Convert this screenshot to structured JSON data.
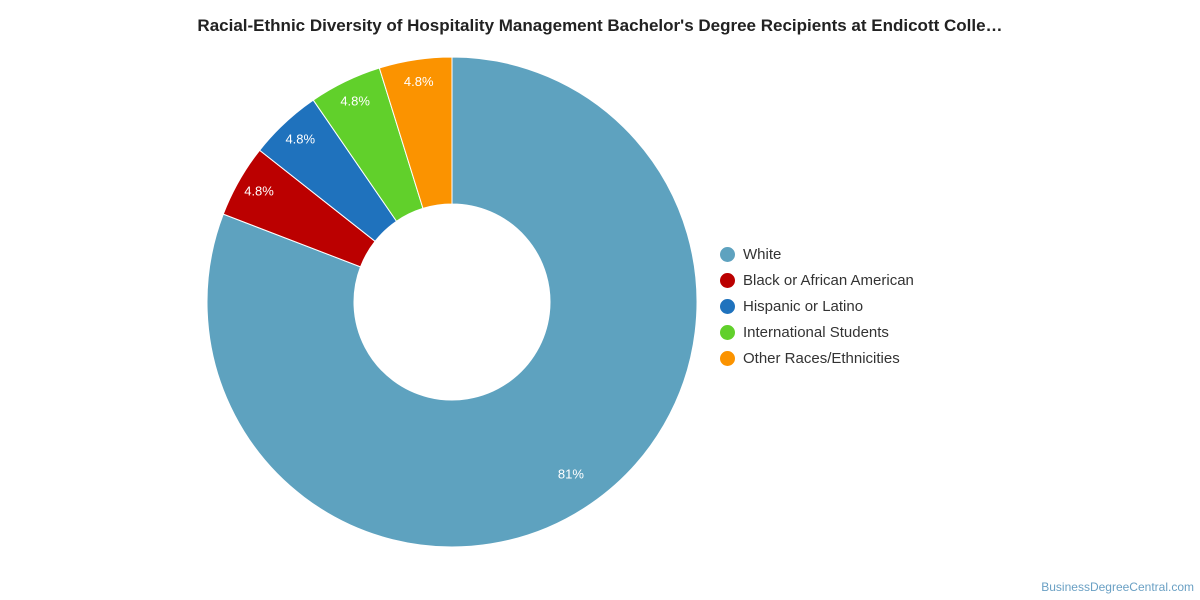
{
  "chart_data": {
    "type": "pie",
    "title": "Racial-Ethnic Diversity of Hospitality Management Bachelor's Degree Recipients at Endicott Colle…",
    "variant": "donut",
    "legend_position": "right",
    "categories": [
      "White",
      "Black or African American",
      "Hispanic or Latino",
      "International Students",
      "Other Races/Ethnicities"
    ],
    "values": [
      81,
      4.8,
      4.8,
      4.8,
      4.8
    ],
    "labels": [
      "81%",
      "4.8%",
      "4.8%",
      "4.8%",
      "4.8%"
    ],
    "colors": [
      "#5ea2bf",
      "#bb0000",
      "#1f72bd",
      "#61d02b",
      "#fb9300"
    ]
  },
  "credit": "BusinessDegreeCentral.com"
}
